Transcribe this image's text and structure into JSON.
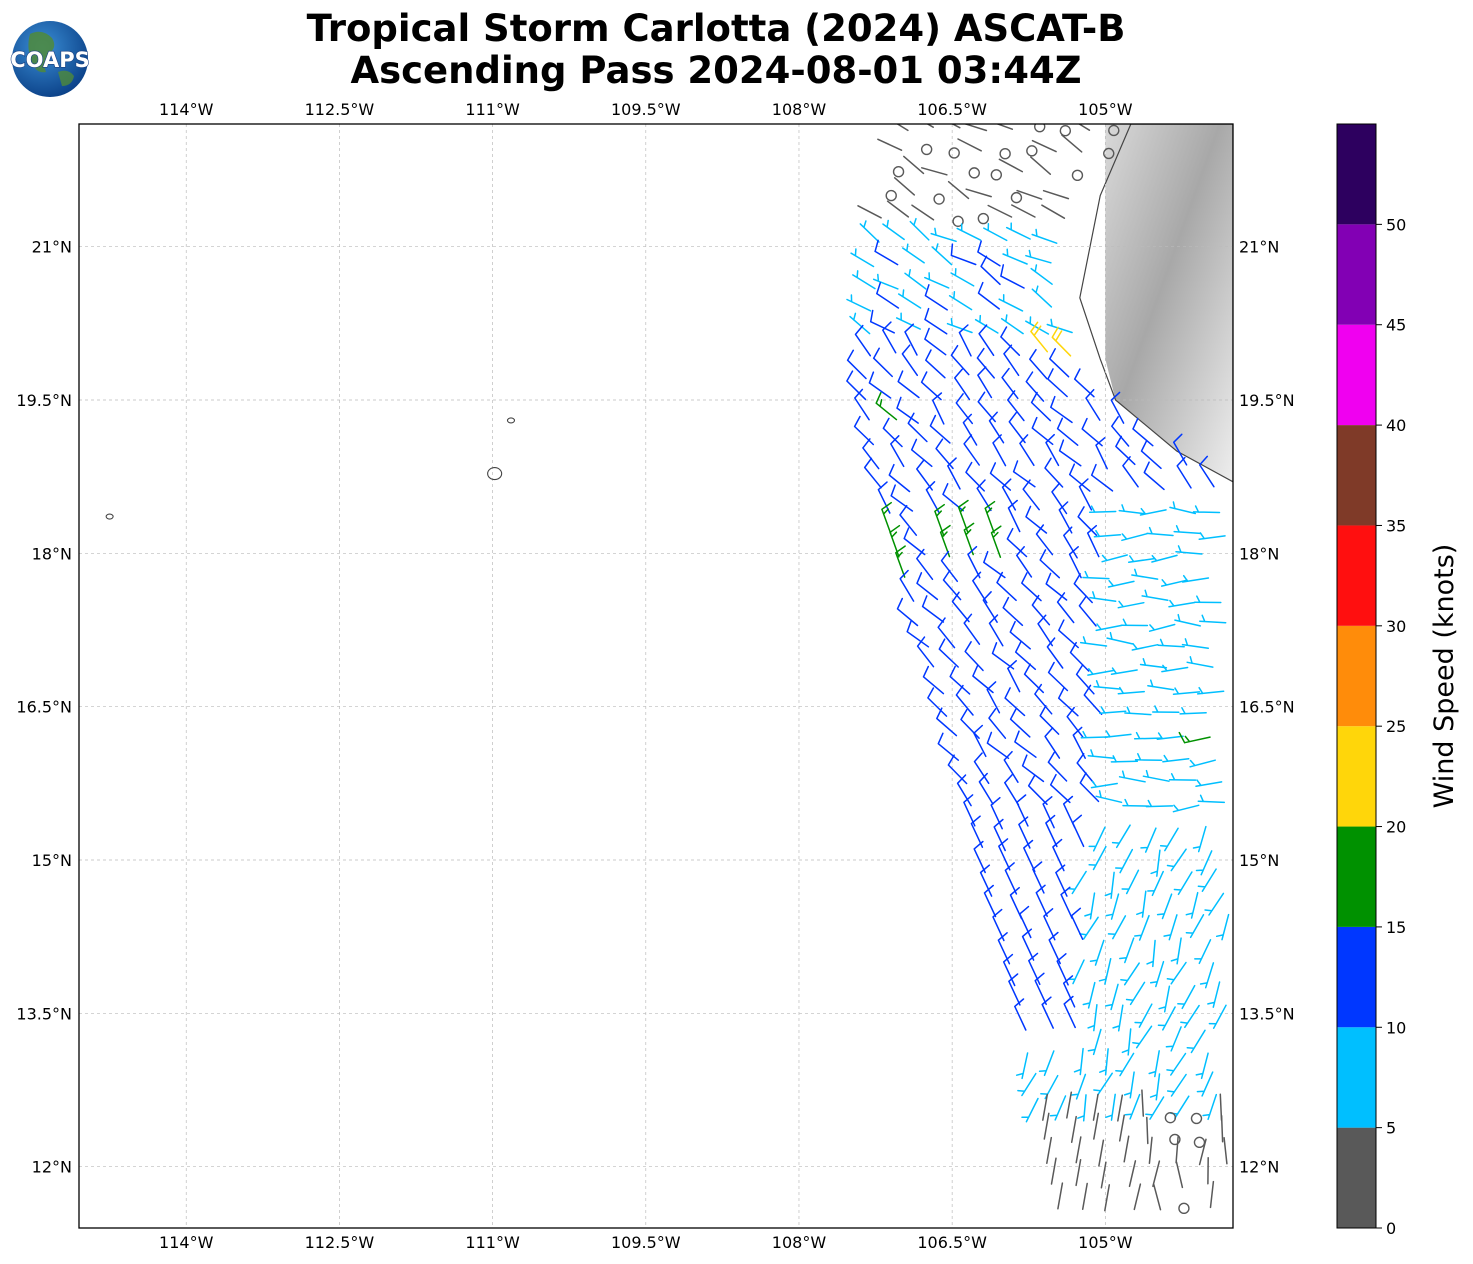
{
  "header": {
    "title_line1": "Tropical Storm Carlotta (2024) ASCAT-B",
    "title_line2": "Ascending Pass 2024-08-01 03:44Z",
    "logo_text": "COAPS"
  },
  "chart_data": {
    "type": "wind-barb-map",
    "xlim": [
      -115.05,
      -103.75
    ],
    "ylim": [
      11.4,
      22.2
    ],
    "x_ticks": [
      {
        "value": -114.0,
        "label": "114°W"
      },
      {
        "value": -112.5,
        "label": "112.5°W"
      },
      {
        "value": -111.0,
        "label": "111°W"
      },
      {
        "value": -109.5,
        "label": "109.5°W"
      },
      {
        "value": -108.0,
        "label": "108°W"
      },
      {
        "value": -106.5,
        "label": "106.5°W"
      },
      {
        "value": -105.0,
        "label": "105°W"
      }
    ],
    "y_ticks": [
      {
        "value": 21.0,
        "label": "21°N"
      },
      {
        "value": 19.5,
        "label": "19.5°N"
      },
      {
        "value": 18.0,
        "label": "18°N"
      },
      {
        "value": 16.5,
        "label": "16.5°N"
      },
      {
        "value": 15.0,
        "label": "15°N"
      },
      {
        "value": 13.5,
        "label": "13.5°N"
      },
      {
        "value": 12.0,
        "label": "12°N"
      }
    ],
    "grid": true,
    "colorbar": {
      "label": "Wind Speed (knots)",
      "levels": [
        0,
        5,
        10,
        15,
        20,
        25,
        30,
        35,
        40,
        45,
        50,
        55
      ],
      "tick_labels": [
        "0",
        "5",
        "10",
        "15",
        "20",
        "25",
        "30",
        "35",
        "40",
        "45",
        "50"
      ],
      "colors": [
        "#595959",
        "#00bfff",
        "#0037ff",
        "#009100",
        "#ffd60a",
        "#ff8c0a",
        "#ff0f0f",
        "#7f3a28",
        "#f000f0",
        "#8200b4",
        "#2d005f"
      ]
    },
    "swath": {
      "west_edge": [
        [
          -106.9,
          22.2
        ],
        [
          -107.25,
          21.0
        ],
        [
          -107.35,
          19.5
        ],
        [
          -107.05,
          18.0
        ],
        [
          -106.55,
          16.5
        ],
        [
          -106.2,
          15.0
        ],
        [
          -105.8,
          13.5
        ],
        [
          -105.55,
          12.0
        ],
        [
          -105.45,
          11.4
        ]
      ],
      "east_edge_lon": -103.75,
      "land_lon_at": [
        [
          -104.75,
          22.2
        ],
        [
          -105.05,
          21.5
        ],
        [
          -105.25,
          20.5
        ],
        [
          -105.05,
          19.9
        ],
        [
          -104.9,
          19.5
        ],
        [
          -104.3,
          19.0
        ],
        [
          -103.75,
          18.7
        ]
      ]
    },
    "wind_regions": [
      {
        "name": "calm north",
        "lat": [
          21.2,
          22.2
        ],
        "speed_kt": 3,
        "dir_deg": 300
      },
      {
        "name": "nw flow",
        "lat": [
          20.0,
          21.2
        ],
        "speed_kt": 9,
        "dir_deg": 300
      },
      {
        "name": "core",
        "lat": [
          15.5,
          20.0
        ],
        "speed_kt": 13,
        "dir_deg": 320
      },
      {
        "name": "south",
        "lat": [
          12.5,
          15.5
        ],
        "speed_kt": 8,
        "dir_deg": 200
      },
      {
        "name": "calm south",
        "lat": [
          11.4,
          12.5
        ],
        "speed_kt": 3,
        "dir_deg": 0
      }
    ],
    "highlights": [
      {
        "name": "green band",
        "lon": -107.2,
        "lat": [
          16.4,
          18.3
        ],
        "speed_kt": 17
      },
      {
        "name": "green patch",
        "lon": -106.3,
        "lat": [
          17.8,
          18.3
        ],
        "speed_kt": 17
      },
      {
        "name": "green point",
        "lon": -107.05,
        "lat": 19.35,
        "speed_kt": 17
      },
      {
        "name": "green point south",
        "lon": -104.05,
        "lat": 16.2,
        "speed_kt": 17
      },
      {
        "name": "yellow point",
        "lon": -105.45,
        "lat": 19.9,
        "speed_kt": 22
      }
    ],
    "islands": [
      {
        "name": "socorro",
        "lon": -110.98,
        "lat": 18.78
      },
      {
        "name": "san benedicto",
        "lon": -110.82,
        "lat": 19.3
      },
      {
        "name": "clarion",
        "lon": -114.75,
        "lat": 18.36
      }
    ]
  }
}
